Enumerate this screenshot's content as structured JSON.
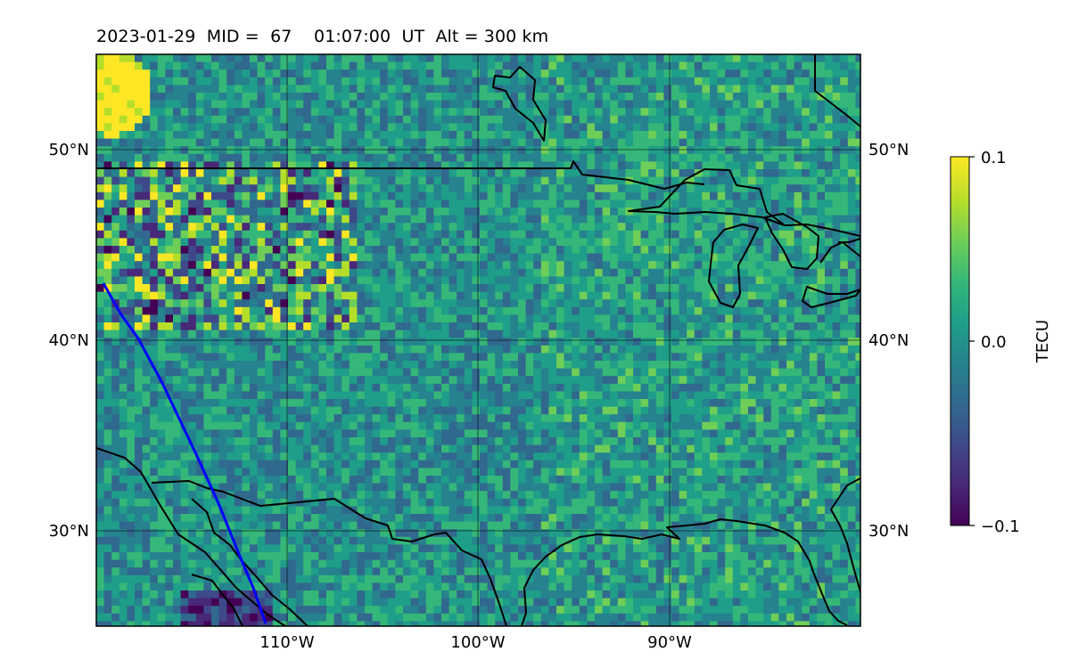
{
  "title": {
    "date": "2023-01-29",
    "mid_label": "MID =",
    "mid_value": "67",
    "time": "01:07:00",
    "time_unit": "UT",
    "alt_label": "Alt = 300 km"
  },
  "map": {
    "lon_range": [
      -120,
      -80
    ],
    "lat_range": [
      25,
      55
    ],
    "lon_ticks": [
      {
        "value": -110,
        "label": "110°W"
      },
      {
        "value": -100,
        "label": "100°W"
      },
      {
        "value": -90,
        "label": "90°W"
      }
    ],
    "lat_ticks": [
      {
        "value": 50,
        "label": "50°N"
      },
      {
        "value": 40,
        "label": "40°N"
      },
      {
        "value": 30,
        "label": "30°N"
      }
    ],
    "gridlines": true,
    "colormap": "viridis",
    "coastline_color": "#000000",
    "track_color": "#0000ff"
  },
  "colorbar": {
    "label": "TECU",
    "min": -0.1,
    "max": 0.1,
    "ticks": [
      {
        "value": 0.1,
        "label": "0.1"
      },
      {
        "value": 0.0,
        "label": "0.0"
      },
      {
        "value": -0.1,
        "label": "−0.1"
      }
    ],
    "colors": [
      "#440154",
      "#482878",
      "#3e4989",
      "#31688e",
      "#26828e",
      "#1f9e89",
      "#35b779",
      "#6ece58",
      "#b5de2b",
      "#fde725"
    ]
  }
}
